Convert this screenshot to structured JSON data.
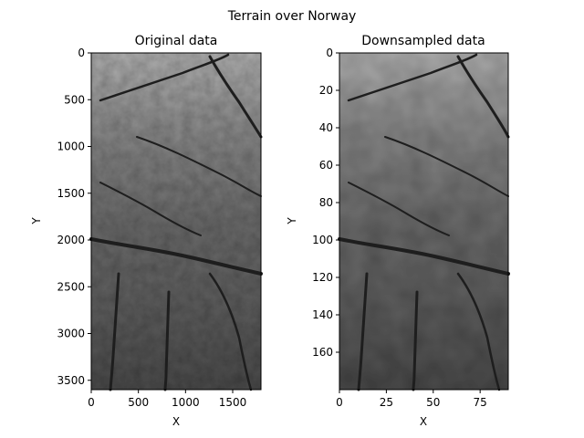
{
  "figure": {
    "suptitle": "Terrain over Norway"
  },
  "chart_data": [
    {
      "type": "heatmap",
      "title": "Original data",
      "xlabel": "X",
      "ylabel": "Y",
      "xlim": [
        0,
        1800
      ],
      "ylim": [
        3600,
        0
      ],
      "y_inverted": true,
      "xticks": [
        0,
        500,
        1000,
        1500
      ],
      "yticks": [
        0,
        500,
        1000,
        1500,
        2000,
        2500,
        3000,
        3500
      ],
      "colormap": "gray"
    },
    {
      "type": "heatmap",
      "title": "Downsampled data",
      "xlabel": "X",
      "ylabel": "Y",
      "xlim": [
        0,
        90
      ],
      "ylim": [
        180,
        0
      ],
      "y_inverted": true,
      "xticks": [
        0,
        25,
        50,
        75
      ],
      "yticks": [
        0,
        20,
        40,
        60,
        80,
        100,
        120,
        140,
        160
      ],
      "colormap": "gray"
    }
  ]
}
